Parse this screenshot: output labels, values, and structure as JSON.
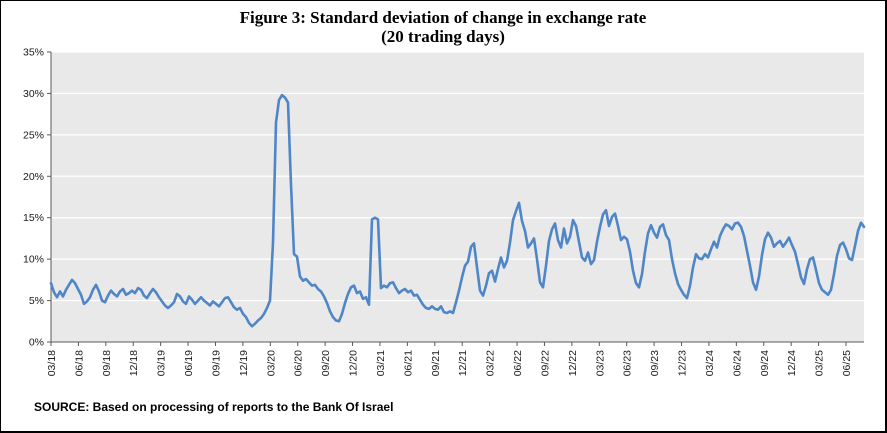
{
  "title": {
    "line1": "Figure 3:  Standard deviation of change in exchange rate",
    "line2": "(20 trading days)"
  },
  "source_note": "SOURCE: Based on processing of reports to the Bank Of Israel",
  "colors": {
    "line": "#4f86c8",
    "plot_bg": "#e9e9e9",
    "grid": "#ffffff",
    "axis": "#595959",
    "tick": "#595959",
    "text": "#1a1a1a",
    "frame_border": "#000000"
  },
  "chart_data": {
    "type": "line",
    "title": "Figure 3:  Standard deviation of change in exchange rate",
    "subtitle": "(20 trading days)",
    "xlabel": "",
    "ylabel": "",
    "ylim": [
      0,
      35
    ],
    "y_unit": "%",
    "grid": true,
    "legend": false,
    "y_ticks": [
      "35%",
      "30%",
      "25%",
      "20%",
      "15%",
      "10%",
      "5%",
      "0%"
    ],
    "x_ticks": [
      "03/18",
      "06/18",
      "09/18",
      "12/18",
      "03/19",
      "06/19",
      "09/19",
      "12/19",
      "03/20",
      "06/20",
      "09/20",
      "12/20",
      "03/21",
      "06/21",
      "09/21",
      "12/21",
      "03/22",
      "06/22",
      "09/22",
      "12/22",
      "03/23",
      "06/23",
      "09/23",
      "12/23",
      "03/24",
      "06/24",
      "09/24",
      "12/24",
      "03/25",
      "06/25"
    ],
    "series": [
      {
        "name": "Standard deviation of change in exchange rate (20 trading days), %",
        "color": "#4f86c8",
        "values": [
          7.1,
          6.0,
          5.4,
          6.1,
          5.5,
          6.3,
          6.9,
          7.5,
          7.1,
          6.4,
          5.7,
          4.6,
          4.9,
          5.4,
          6.3,
          6.9,
          6.1,
          5.0,
          4.8,
          5.6,
          6.2,
          5.8,
          5.5,
          6.1,
          6.4,
          5.7,
          5.9,
          6.2,
          5.9,
          6.5,
          6.3,
          5.6,
          5.3,
          5.9,
          6.4,
          6.0,
          5.4,
          4.9,
          4.4,
          4.1,
          4.4,
          4.8,
          5.8,
          5.5,
          4.9,
          4.6,
          5.5,
          5.1,
          4.6,
          5.0,
          5.4,
          5.0,
          4.7,
          4.4,
          4.9,
          4.6,
          4.3,
          4.8,
          5.3,
          5.4,
          4.8,
          4.2,
          3.9,
          4.1,
          3.4,
          3.0,
          2.3,
          1.9,
          2.2,
          2.6,
          2.9,
          3.4,
          4.1,
          5.0,
          12.0,
          26.5,
          29.2,
          29.8,
          29.5,
          28.9,
          19.0,
          10.6,
          10.3,
          7.9,
          7.4,
          7.6,
          7.2,
          6.8,
          6.9,
          6.4,
          6.1,
          5.5,
          4.7,
          3.7,
          3.0,
          2.6,
          2.5,
          3.4,
          4.7,
          5.8,
          6.6,
          6.8,
          5.9,
          6.1,
          5.2,
          5.4,
          4.5,
          14.8,
          15.0,
          14.8,
          6.5,
          6.8,
          6.6,
          7.1,
          7.2,
          6.5,
          5.9,
          6.2,
          6.4,
          6.0,
          6.2,
          5.6,
          5.7,
          5.1,
          4.5,
          4.1,
          4.0,
          4.3,
          4.0,
          3.9,
          4.3,
          3.6,
          3.5,
          3.7,
          3.5,
          4.8,
          6.2,
          7.8,
          9.2,
          9.7,
          11.5,
          11.9,
          9.0,
          6.2,
          5.6,
          6.8,
          8.3,
          8.6,
          7.3,
          8.8,
          10.2,
          9.0,
          9.8,
          12.0,
          14.7,
          15.8,
          16.8,
          14.6,
          13.4,
          11.4,
          11.9,
          12.5,
          10.0,
          7.2,
          6.6,
          9.2,
          12.2,
          13.6,
          14.3,
          12.3,
          11.4,
          13.7,
          11.9,
          12.7,
          14.7,
          14.0,
          12.1,
          10.2,
          9.8,
          10.8,
          9.4,
          9.9,
          12.1,
          13.9,
          15.4,
          15.9,
          14.0,
          15.1,
          15.5,
          14.0,
          12.3,
          12.7,
          12.4,
          10.9,
          8.6,
          7.1,
          6.6,
          8.2,
          10.9,
          13.1,
          14.1,
          13.2,
          12.6,
          13.9,
          14.2,
          12.9,
          12.3,
          10.0,
          8.3,
          7.0,
          6.3,
          5.7,
          5.3,
          6.8,
          9.0,
          10.6,
          10.1,
          10.0,
          10.6,
          10.2,
          11.2,
          12.1,
          11.4,
          12.8,
          13.6,
          14.2,
          14.0,
          13.6,
          14.3,
          14.4,
          13.9,
          12.8,
          11.0,
          9.2,
          7.2,
          6.3,
          7.9,
          10.5,
          12.4,
          13.2,
          12.6,
          11.5,
          11.9,
          12.2,
          11.5,
          12.0,
          12.6,
          11.7,
          10.9,
          9.4,
          7.8,
          7.0,
          8.8,
          10.0,
          10.2,
          8.7,
          7.1,
          6.3,
          6.0,
          5.7,
          6.3,
          8.2,
          10.4,
          11.7,
          12.0,
          11.2,
          10.1,
          9.9,
          11.6,
          13.4,
          14.4,
          13.9
        ]
      }
    ]
  }
}
